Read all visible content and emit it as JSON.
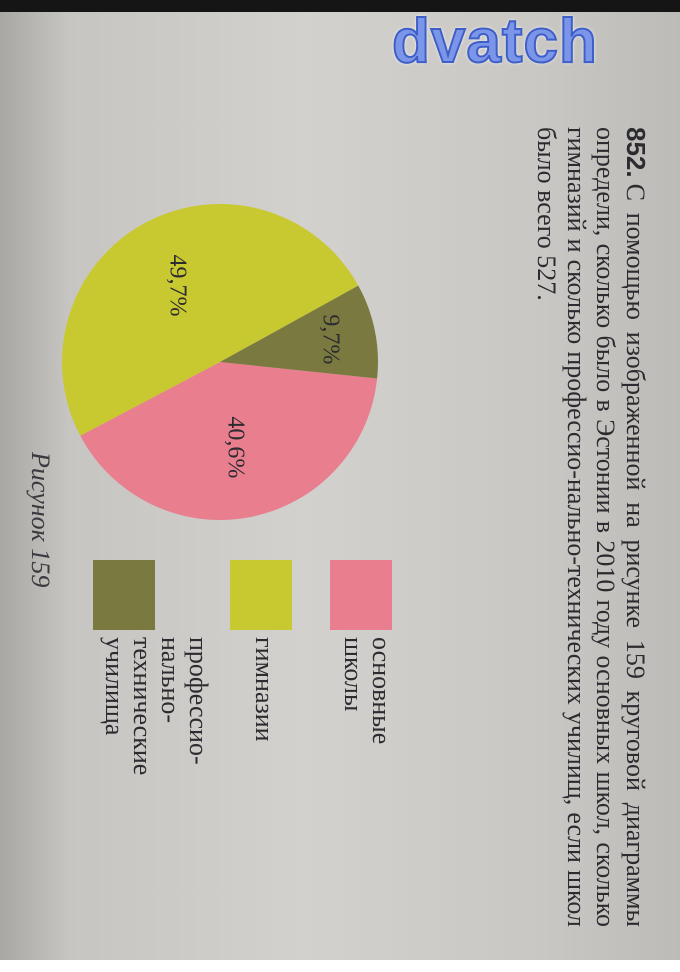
{
  "watermark": "dvatch",
  "problem": {
    "number": "852.",
    "text": "С помощью изображенной на рисунке 159 круговой диаграммы определи, сколько было в Эстонии в 2010 году основных школ, сколько гимназий и сколько профессио-нально-технических училищ, если школ было всего 527."
  },
  "caption": "Рисунок 159",
  "colors": {
    "basic_schools": "#e87e8e",
    "gymnasiums": "#c8c830",
    "vocational": "#7a7a40"
  },
  "chart_data": {
    "type": "pie",
    "title": "",
    "slices": [
      {
        "label": "основные школы",
        "value": 40.6,
        "value_label": "40,6%"
      },
      {
        "label": "гимназии",
        "value": 49.7,
        "value_label": "49,7%"
      },
      {
        "label": "профессио-нально-технические училища",
        "value": 9.7,
        "value_label": "9,7%"
      }
    ],
    "legend": [
      {
        "lines": [
          "основные",
          "школы"
        ]
      },
      {
        "lines": [
          "гимназии"
        ]
      },
      {
        "lines": [
          "профессио-",
          "нально-",
          "технические",
          "училища"
        ]
      }
    ],
    "legend_position": "right"
  }
}
